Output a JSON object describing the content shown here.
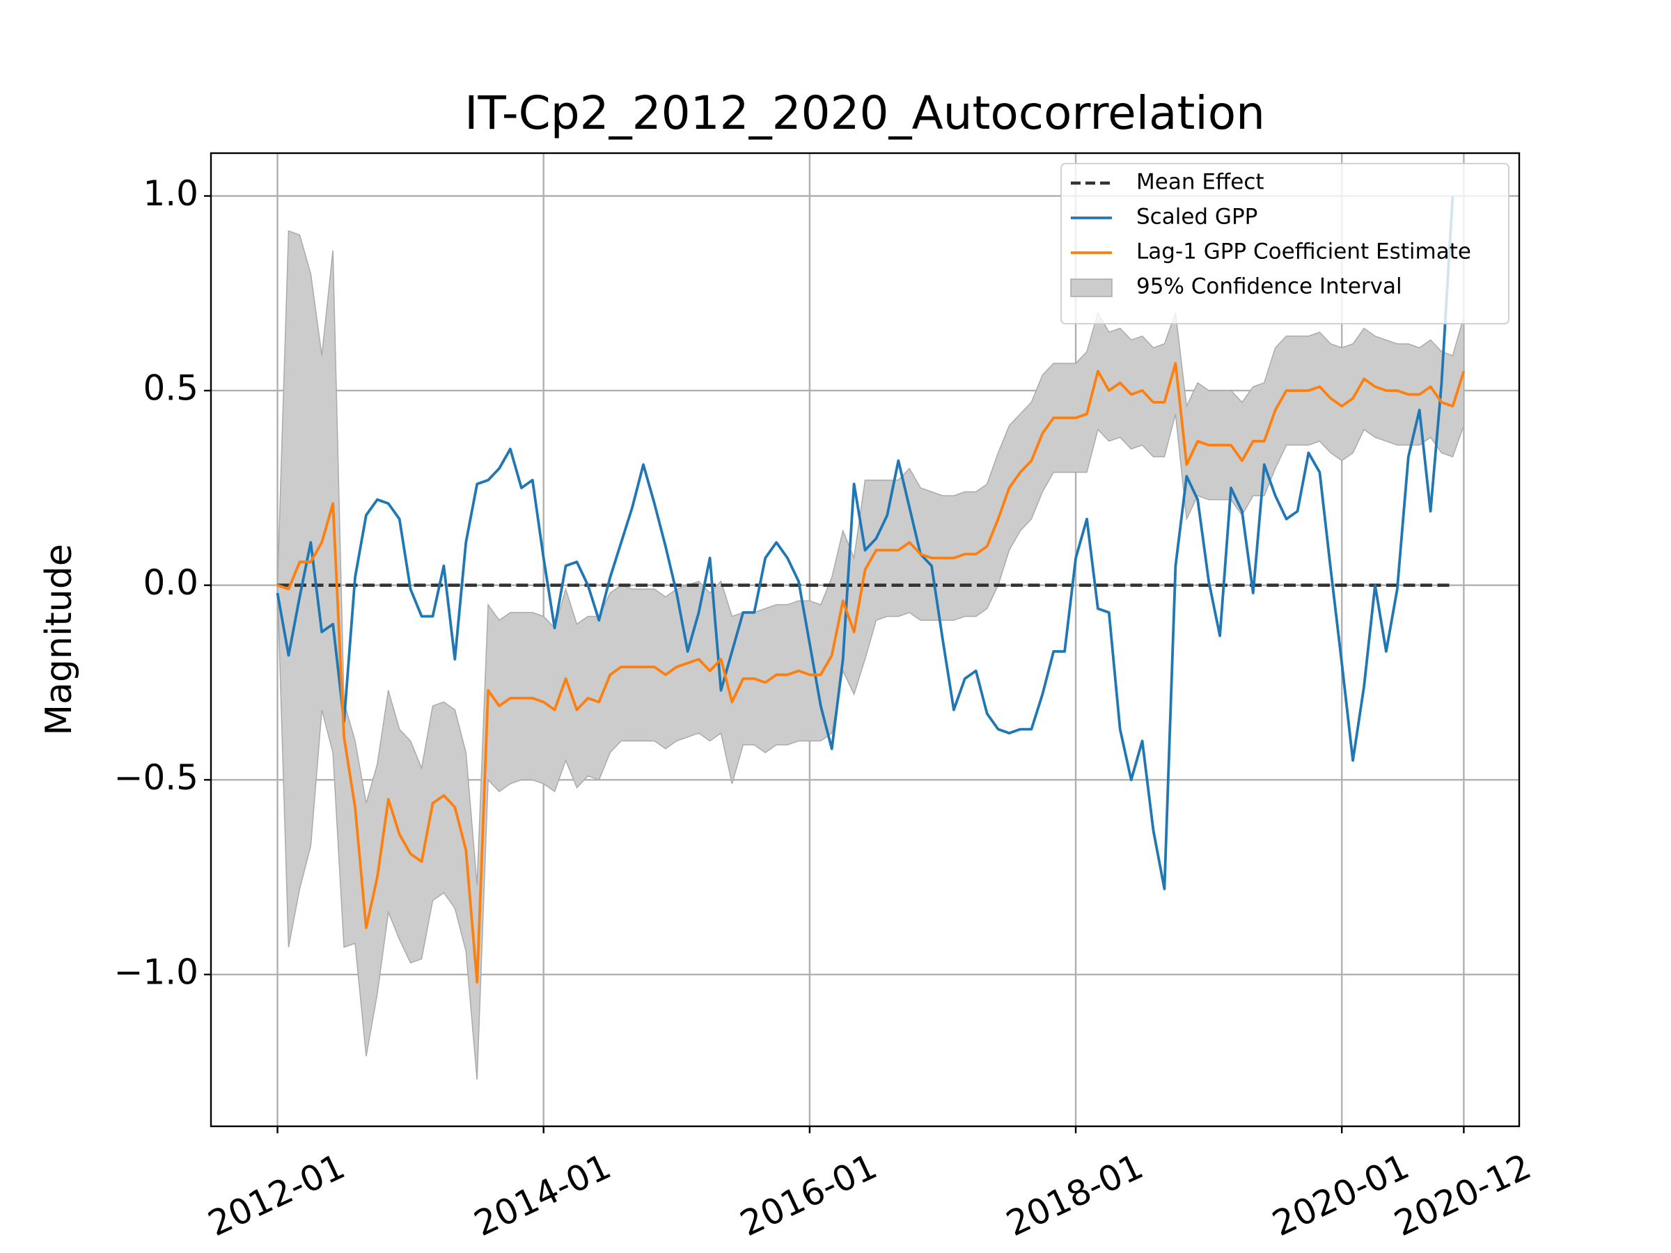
{
  "chart_data": {
    "type": "line",
    "title": "IT-Cp2_2012_2020_Autocorrelation",
    "ylabel": "Magnitude",
    "x": [
      "2012-01",
      "2012-02",
      "2012-03",
      "2012-04",
      "2012-05",
      "2012-06",
      "2012-07",
      "2012-08",
      "2012-09",
      "2012-10",
      "2012-11",
      "2012-12",
      "2013-01",
      "2013-02",
      "2013-03",
      "2013-04",
      "2013-05",
      "2013-06",
      "2013-07",
      "2013-08",
      "2013-09",
      "2013-10",
      "2013-11",
      "2013-12",
      "2014-01",
      "2014-02",
      "2014-03",
      "2014-04",
      "2014-05",
      "2014-06",
      "2014-07",
      "2014-08",
      "2014-09",
      "2014-10",
      "2014-11",
      "2014-12",
      "2015-01",
      "2015-02",
      "2015-03",
      "2015-04",
      "2015-05",
      "2015-06",
      "2015-07",
      "2015-08",
      "2015-09",
      "2015-10",
      "2015-11",
      "2015-12",
      "2016-01",
      "2016-02",
      "2016-03",
      "2016-04",
      "2016-05",
      "2016-06",
      "2016-07",
      "2016-08",
      "2016-09",
      "2016-10",
      "2016-11",
      "2016-12",
      "2017-01",
      "2017-02",
      "2017-03",
      "2017-04",
      "2017-05",
      "2017-06",
      "2017-07",
      "2017-08",
      "2017-09",
      "2017-10",
      "2017-11",
      "2017-12",
      "2018-01",
      "2018-02",
      "2018-03",
      "2018-04",
      "2018-05",
      "2018-06",
      "2018-07",
      "2018-08",
      "2018-09",
      "2018-10",
      "2018-11",
      "2018-12",
      "2019-01",
      "2019-02",
      "2019-03",
      "2019-04",
      "2019-05",
      "2019-06",
      "2019-07",
      "2019-08",
      "2019-09",
      "2019-10",
      "2019-11",
      "2019-12",
      "2020-01",
      "2020-02",
      "2020-03",
      "2020-04",
      "2020-05",
      "2020-06",
      "2020-07",
      "2020-08",
      "2020-09",
      "2020-10",
      "2020-11",
      "2020-12"
    ],
    "series": [
      {
        "name": "Mean Effect",
        "color": "#333333",
        "linestyle": "dashed",
        "x": [
          "2012-01",
          "2020-11"
        ],
        "values": [
          0,
          0
        ]
      },
      {
        "name": "Scaled GPP",
        "color": "#1f77b4",
        "values": [
          -0.02,
          -0.18,
          -0.03,
          0.11,
          -0.12,
          -0.1,
          -0.35,
          0.02,
          0.18,
          0.22,
          0.21,
          0.17,
          -0.01,
          -0.08,
          -0.08,
          0.05,
          -0.19,
          0.11,
          0.26,
          0.27,
          0.3,
          0.35,
          0.25,
          0.27,
          0.07,
          -0.11,
          0.05,
          0.06,
          0.0,
          -0.09,
          0.02,
          0.11,
          0.2,
          0.31,
          0.21,
          0.1,
          -0.02,
          -0.17,
          -0.07,
          0.07,
          -0.27,
          -0.17,
          -0.07,
          -0.07,
          0.07,
          0.11,
          0.07,
          0.01,
          -0.15,
          -0.31,
          -0.42,
          -0.19,
          0.26,
          0.09,
          0.12,
          0.18,
          0.32,
          0.2,
          0.08,
          0.05,
          -0.14,
          -0.32,
          -0.24,
          -0.22,
          -0.33,
          -0.37,
          -0.38,
          -0.37,
          -0.37,
          -0.28,
          -0.17,
          -0.17,
          0.07,
          0.17,
          -0.06,
          -0.07,
          -0.37,
          -0.5,
          -0.4,
          -0.63,
          -0.78,
          0.05,
          0.28,
          0.22,
          0.01,
          -0.13,
          0.25,
          0.19,
          -0.02,
          0.31,
          0.23,
          0.17,
          0.19,
          0.34,
          0.29,
          0.04,
          -0.2,
          -0.45,
          -0.26,
          0.0,
          -0.17,
          -0.01,
          0.33,
          0.45,
          0.19,
          0.52,
          1.0,
          null
        ]
      },
      {
        "name": "Lag-1 GPP Coefficient Estimate",
        "color": "#ff7f0e",
        "values": [
          0.0,
          -0.01,
          0.06,
          0.06,
          0.11,
          0.21,
          -0.39,
          -0.57,
          -0.88,
          -0.75,
          -0.55,
          -0.64,
          -0.69,
          -0.71,
          -0.56,
          -0.54,
          -0.57,
          -0.68,
          -1.02,
          -0.27,
          -0.31,
          -0.29,
          -0.29,
          -0.29,
          -0.3,
          -0.32,
          -0.24,
          -0.32,
          -0.29,
          -0.3,
          -0.23,
          -0.21,
          -0.21,
          -0.21,
          -0.21,
          -0.23,
          -0.21,
          -0.2,
          -0.19,
          -0.22,
          -0.19,
          -0.3,
          -0.24,
          -0.24,
          -0.25,
          -0.23,
          -0.23,
          -0.22,
          -0.23,
          -0.23,
          -0.18,
          -0.04,
          -0.12,
          0.04,
          0.09,
          0.09,
          0.09,
          0.11,
          0.08,
          0.07,
          0.07,
          0.07,
          0.08,
          0.08,
          0.1,
          0.17,
          0.25,
          0.29,
          0.32,
          0.39,
          0.43,
          0.43,
          0.43,
          0.44,
          0.55,
          0.5,
          0.52,
          0.49,
          0.5,
          0.47,
          0.47,
          0.57,
          0.31,
          0.37,
          0.36,
          0.36,
          0.36,
          0.32,
          0.37,
          0.37,
          0.45,
          0.5,
          0.5,
          0.5,
          0.51,
          0.48,
          0.46,
          0.48,
          0.53,
          0.51,
          0.5,
          0.5,
          0.49,
          0.49,
          0.51,
          0.47,
          0.46,
          0.55
        ]
      },
      {
        "name": "95% Confidence Interval",
        "color": "#cccccc",
        "upper": [
          0.0,
          0.91,
          0.9,
          0.8,
          0.59,
          0.86,
          -0.3,
          -0.4,
          -0.56,
          -0.46,
          -0.27,
          -0.37,
          -0.4,
          -0.47,
          -0.31,
          -0.3,
          -0.32,
          -0.43,
          -0.77,
          -0.05,
          -0.09,
          -0.07,
          -0.07,
          -0.07,
          -0.08,
          -0.11,
          -0.01,
          -0.1,
          -0.08,
          -0.08,
          -0.02,
          0.0,
          -0.01,
          -0.01,
          -0.01,
          -0.03,
          -0.01,
          0.0,
          0.01,
          -0.02,
          0.01,
          -0.08,
          -0.07,
          -0.07,
          -0.06,
          -0.05,
          -0.05,
          -0.04,
          -0.04,
          -0.05,
          0.02,
          0.14,
          0.07,
          0.27,
          0.27,
          0.27,
          0.27,
          0.3,
          0.25,
          0.24,
          0.23,
          0.23,
          0.24,
          0.24,
          0.26,
          0.34,
          0.41,
          0.44,
          0.47,
          0.54,
          0.57,
          0.57,
          0.57,
          0.6,
          0.7,
          0.65,
          0.66,
          0.63,
          0.64,
          0.61,
          0.62,
          0.7,
          0.46,
          0.52,
          0.5,
          0.5,
          0.5,
          0.47,
          0.51,
          0.52,
          0.61,
          0.64,
          0.64,
          0.64,
          0.65,
          0.62,
          0.61,
          0.62,
          0.66,
          0.64,
          0.63,
          0.62,
          0.62,
          0.61,
          0.63,
          0.6,
          0.59,
          0.69
        ],
        "lower": [
          0.0,
          -0.93,
          -0.78,
          -0.67,
          -0.32,
          -0.43,
          -0.93,
          -0.92,
          -1.21,
          -1.05,
          -0.84,
          -0.91,
          -0.97,
          -0.96,
          -0.81,
          -0.79,
          -0.83,
          -0.94,
          -1.27,
          -0.5,
          -0.53,
          -0.51,
          -0.5,
          -0.5,
          -0.51,
          -0.53,
          -0.45,
          -0.52,
          -0.49,
          -0.5,
          -0.43,
          -0.4,
          -0.4,
          -0.4,
          -0.4,
          -0.42,
          -0.4,
          -0.39,
          -0.38,
          -0.4,
          -0.38,
          -0.51,
          -0.41,
          -0.41,
          -0.43,
          -0.41,
          -0.41,
          -0.4,
          -0.4,
          -0.4,
          -0.38,
          -0.22,
          -0.28,
          -0.19,
          -0.09,
          -0.08,
          -0.08,
          -0.07,
          -0.09,
          -0.09,
          -0.09,
          -0.09,
          -0.08,
          -0.08,
          -0.06,
          0.0,
          0.09,
          0.14,
          0.17,
          0.24,
          0.29,
          0.29,
          0.29,
          0.29,
          0.4,
          0.37,
          0.38,
          0.35,
          0.36,
          0.33,
          0.33,
          0.44,
          0.17,
          0.23,
          0.22,
          0.22,
          0.22,
          0.18,
          0.23,
          0.23,
          0.3,
          0.36,
          0.36,
          0.36,
          0.37,
          0.34,
          0.32,
          0.34,
          0.4,
          0.38,
          0.37,
          0.36,
          0.36,
          0.36,
          0.38,
          0.34,
          0.33,
          0.41
        ]
      }
    ],
    "xlim": [
      "2011-07",
      "2021-05"
    ],
    "xticks": [
      "2012-01",
      "2014-01",
      "2016-01",
      "2018-01",
      "2020-01",
      "2020-12"
    ],
    "ylim": [
      -1.39,
      1.11
    ],
    "yticks": [
      {
        "value": -1.0,
        "label": "−1.0"
      },
      {
        "value": -0.5,
        "label": "−0.5"
      },
      {
        "value": 0.0,
        "label": "0.0"
      },
      {
        "value": 0.5,
        "label": "0.5"
      },
      {
        "value": 1.0,
        "label": "1.0"
      }
    ],
    "grid": true,
    "legend": "upper right"
  }
}
